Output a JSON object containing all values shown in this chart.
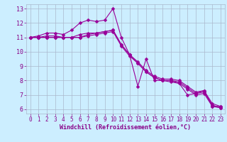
{
  "title": "",
  "xlabel": "Windchill (Refroidissement éolien,°C)",
  "ylabel": "",
  "bg_color": "#cceeff",
  "grid_color": "#aab8cc",
  "line_color": "#990099",
  "xlim": [
    -0.5,
    23.5
  ],
  "ylim": [
    5.7,
    13.3
  ],
  "xticks": [
    0,
    1,
    2,
    3,
    4,
    5,
    6,
    7,
    8,
    9,
    10,
    11,
    12,
    13,
    14,
    15,
    16,
    17,
    18,
    19,
    20,
    21,
    22,
    23
  ],
  "yticks": [
    6,
    7,
    8,
    9,
    10,
    11,
    12,
    13
  ],
  "lines": [
    [
      11.0,
      11.1,
      11.3,
      11.3,
      11.2,
      11.5,
      12.0,
      12.2,
      12.1,
      12.2,
      13.0,
      11.0,
      9.8,
      7.6,
      9.5,
      8.0,
      8.0,
      8.0,
      7.8,
      7.0,
      7.1,
      7.3,
      6.2,
      6.2
    ],
    [
      11.0,
      11.0,
      11.1,
      11.1,
      11.0,
      11.0,
      11.2,
      11.3,
      11.3,
      11.4,
      11.5,
      10.5,
      9.8,
      9.2,
      8.6,
      8.2,
      8.0,
      8.0,
      7.9,
      7.5,
      7.1,
      7.2,
      6.3,
      6.1
    ],
    [
      11.0,
      11.0,
      11.0,
      11.0,
      11.0,
      11.0,
      11.0,
      11.2,
      11.3,
      11.4,
      11.5,
      10.5,
      9.8,
      9.3,
      8.7,
      8.3,
      8.1,
      8.1,
      8.0,
      7.6,
      7.2,
      7.3,
      6.4,
      6.2
    ],
    [
      11.0,
      11.0,
      11.0,
      11.0,
      11.0,
      11.0,
      11.0,
      11.1,
      11.2,
      11.3,
      11.4,
      10.4,
      9.7,
      9.2,
      8.6,
      8.2,
      8.0,
      7.9,
      7.8,
      7.4,
      7.0,
      7.1,
      6.2,
      6.1
    ]
  ],
  "marker": "D",
  "markersize": 2.5,
  "linewidth": 0.8,
  "tick_fontsize": 5.5,
  "xlabel_fontsize": 6.0
}
